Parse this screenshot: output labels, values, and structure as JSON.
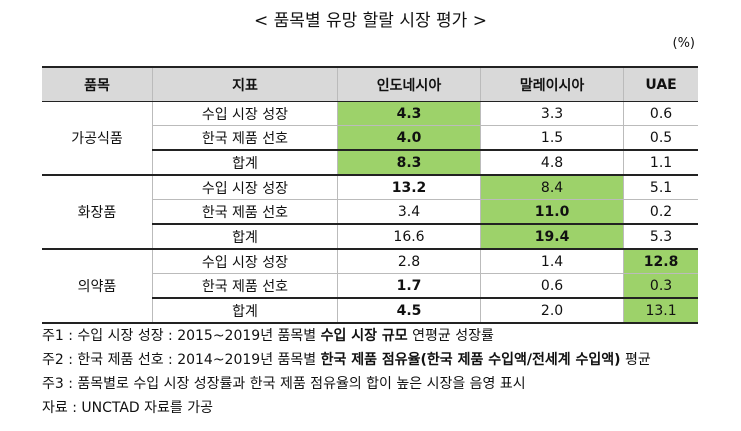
{
  "title": "< 품목별 유망 할랄 시장 평가 >",
  "unit": "(%)",
  "table": {
    "header": [
      "품목",
      "지표",
      "인도네시아",
      "말레이시아",
      "UAE"
    ],
    "groups": [
      {
        "name": "가공식품",
        "highlight_column": 0,
        "rows": [
          {
            "indicator": "수입 시장 성장",
            "bold_column": 0,
            "values": [
              "4.3",
              "3.3",
              "0.6"
            ]
          },
          {
            "indicator": "한국 제품 선호",
            "bold_column": 0,
            "values": [
              "4.0",
              "1.5",
              "0.5"
            ]
          },
          {
            "indicator": "합계",
            "bold_column": 0,
            "values": [
              "8.3",
              "4.8",
              "1.1"
            ]
          }
        ]
      },
      {
        "name": "화장품",
        "highlight_column": 1,
        "rows": [
          {
            "indicator": "수입 시장 성장",
            "bold_column": 0,
            "values": [
              "13.2",
              "8.4",
              "5.1"
            ]
          },
          {
            "indicator": "한국 제품 선호",
            "bold_column": 1,
            "values": [
              "3.4",
              "11.0",
              "0.2"
            ]
          },
          {
            "indicator": "합계",
            "bold_column": 1,
            "values": [
              "16.6",
              "19.4",
              "5.3"
            ]
          }
        ]
      },
      {
        "name": "의약품",
        "highlight_column": 2,
        "rows": [
          {
            "indicator": "수입 시장 성장",
            "bold_column": 2,
            "values": [
              "2.8",
              "1.4",
              "12.8"
            ]
          },
          {
            "indicator": "한국 제품 선호",
            "bold_column": 0,
            "values": [
              "1.7",
              "0.6",
              "0.3"
            ]
          },
          {
            "indicator": "합계",
            "bold_column": 0,
            "values": [
              "4.5",
              "2.0",
              "13.1"
            ]
          }
        ]
      }
    ]
  },
  "notes": [
    [
      {
        "text": "주1 : 수입 시장 성장 : 2015~2019년 품목별 "
      },
      {
        "text": "수입 시장 규모",
        "bold": true
      },
      {
        "text": " 연평균 성장률"
      }
    ],
    [
      {
        "text": "주2 : 한국 제품 선호 : 2014~2019년 품목별 "
      },
      {
        "text": "한국 제품 점유율(한국 제품 수입액/전세계 수입액)",
        "bold": true
      },
      {
        "text": " 평균"
      }
    ],
    [
      {
        "text": "주3 : 품목별로 수입 시장 성장률과 한국 제품 점유율의 합이 높은 시장을 음영 표시"
      }
    ],
    [
      {
        "text": "자료 : UNCTAD 자료를 가공"
      }
    ]
  ]
}
